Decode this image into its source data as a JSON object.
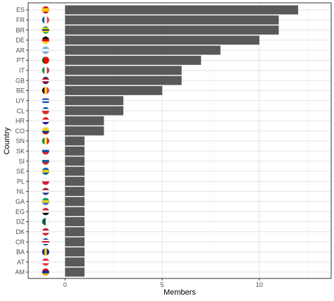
{
  "chart_data": {
    "type": "bar",
    "orientation": "horizontal",
    "xlabel": "Members",
    "ylabel": "Country",
    "xlim": [
      -1.9,
      13.7
    ],
    "x_ticks": [
      0,
      5,
      10
    ],
    "grid": true,
    "legend": "none",
    "bar_color": "#595959",
    "categories": [
      "ES",
      "FR",
      "BR",
      "DE",
      "AR",
      "PT",
      "IT",
      "GB",
      "BE",
      "UY",
      "CL",
      "HR",
      "CO",
      "SN",
      "SK",
      "SI",
      "SE",
      "PL",
      "NL",
      "GA",
      "EG",
      "DZ",
      "DK",
      "CR",
      "BA",
      "AT",
      "AM"
    ],
    "values": [
      12,
      11,
      11,
      10,
      8,
      7,
      6,
      6,
      5,
      3,
      3,
      2,
      2,
      1,
      1,
      1,
      1,
      1,
      1,
      1,
      1,
      1,
      1,
      1,
      1,
      1,
      1
    ],
    "flags": [
      {
        "name": "spain-flag",
        "stripes": "h",
        "colors": [
          "#c60b1e",
          "#ffc400",
          "#ffc400",
          "#c60b1e"
        ]
      },
      {
        "name": "france-flag",
        "stripes": "v",
        "colors": [
          "#0055a4",
          "#ffffff",
          "#ef4135"
        ]
      },
      {
        "name": "brazil-flag",
        "stripes": "h",
        "colors": [
          "#009c3b",
          "#ffdf00",
          "#002776",
          "#ffdf00",
          "#009c3b"
        ]
      },
      {
        "name": "germany-flag",
        "stripes": "h",
        "colors": [
          "#000000",
          "#dd0000",
          "#ffce00"
        ]
      },
      {
        "name": "argentina-flag",
        "stripes": "h",
        "colors": [
          "#74acdf",
          "#ffffff",
          "#74acdf"
        ]
      },
      {
        "name": "portugal-flag",
        "stripes": "v",
        "colors": [
          "#006600",
          "#ff0000",
          "#ff0000"
        ]
      },
      {
        "name": "italy-flag",
        "stripes": "v",
        "colors": [
          "#009246",
          "#ffffff",
          "#ce2b37"
        ]
      },
      {
        "name": "uk-flag",
        "stripes": "h",
        "colors": [
          "#012169",
          "#c8102e",
          "#ffffff",
          "#c8102e",
          "#012169"
        ]
      },
      {
        "name": "belgium-flag",
        "stripes": "v",
        "colors": [
          "#000000",
          "#fdda24",
          "#ef3340"
        ]
      },
      {
        "name": "uruguay-flag",
        "stripes": "h",
        "colors": [
          "#ffffff",
          "#0038a8",
          "#ffffff",
          "#0038a8",
          "#ffffff"
        ]
      },
      {
        "name": "chile-flag",
        "stripes": "h",
        "colors": [
          "#0039a6",
          "#ffffff",
          "#d52b1e",
          "#d52b1e"
        ]
      },
      {
        "name": "croatia-flag",
        "stripes": "h",
        "colors": [
          "#ff0000",
          "#ffffff",
          "#171796"
        ]
      },
      {
        "name": "colombia-flag",
        "stripes": "h",
        "colors": [
          "#fcd116",
          "#fcd116",
          "#003893",
          "#ce1126"
        ]
      },
      {
        "name": "senegal-flag",
        "stripes": "v",
        "colors": [
          "#00853f",
          "#fdef42",
          "#e31b23"
        ]
      },
      {
        "name": "slovakia-flag",
        "stripes": "h",
        "colors": [
          "#ffffff",
          "#0b4ea2",
          "#ee1c25"
        ]
      },
      {
        "name": "slovenia-flag",
        "stripes": "h",
        "colors": [
          "#ffffff",
          "#005da4",
          "#ed1c24"
        ]
      },
      {
        "name": "sweden-flag",
        "stripes": "h",
        "colors": [
          "#006aa7",
          "#fecc00",
          "#006aa7"
        ]
      },
      {
        "name": "poland-flag",
        "stripes": "h",
        "colors": [
          "#ffffff",
          "#dc143c"
        ]
      },
      {
        "name": "netherlands-flag",
        "stripes": "h",
        "colors": [
          "#ae1c28",
          "#ffffff",
          "#21468b"
        ]
      },
      {
        "name": "gabon-flag",
        "stripes": "h",
        "colors": [
          "#009e60",
          "#fcd116",
          "#3a75c4"
        ]
      },
      {
        "name": "egypt-flag",
        "stripes": "h",
        "colors": [
          "#ce1126",
          "#ffffff",
          "#000000"
        ]
      },
      {
        "name": "algeria-flag",
        "stripes": "v",
        "colors": [
          "#006233",
          "#ffffff"
        ]
      },
      {
        "name": "denmark-flag",
        "stripes": "h",
        "colors": [
          "#c8102e",
          "#ffffff",
          "#c8102e"
        ]
      },
      {
        "name": "costa-rica-flag",
        "stripes": "h",
        "colors": [
          "#002b7f",
          "#ffffff",
          "#ce1126",
          "#ffffff",
          "#002b7f"
        ]
      },
      {
        "name": "bosnia-flag",
        "stripes": "v",
        "colors": [
          "#002395",
          "#fecb00",
          "#002395"
        ]
      },
      {
        "name": "austria-flag",
        "stripes": "h",
        "colors": [
          "#ed2939",
          "#ffffff",
          "#ed2939"
        ]
      },
      {
        "name": "armenia-flag",
        "stripes": "h",
        "colors": [
          "#d90012",
          "#0033a0",
          "#f2a800"
        ]
      }
    ]
  }
}
